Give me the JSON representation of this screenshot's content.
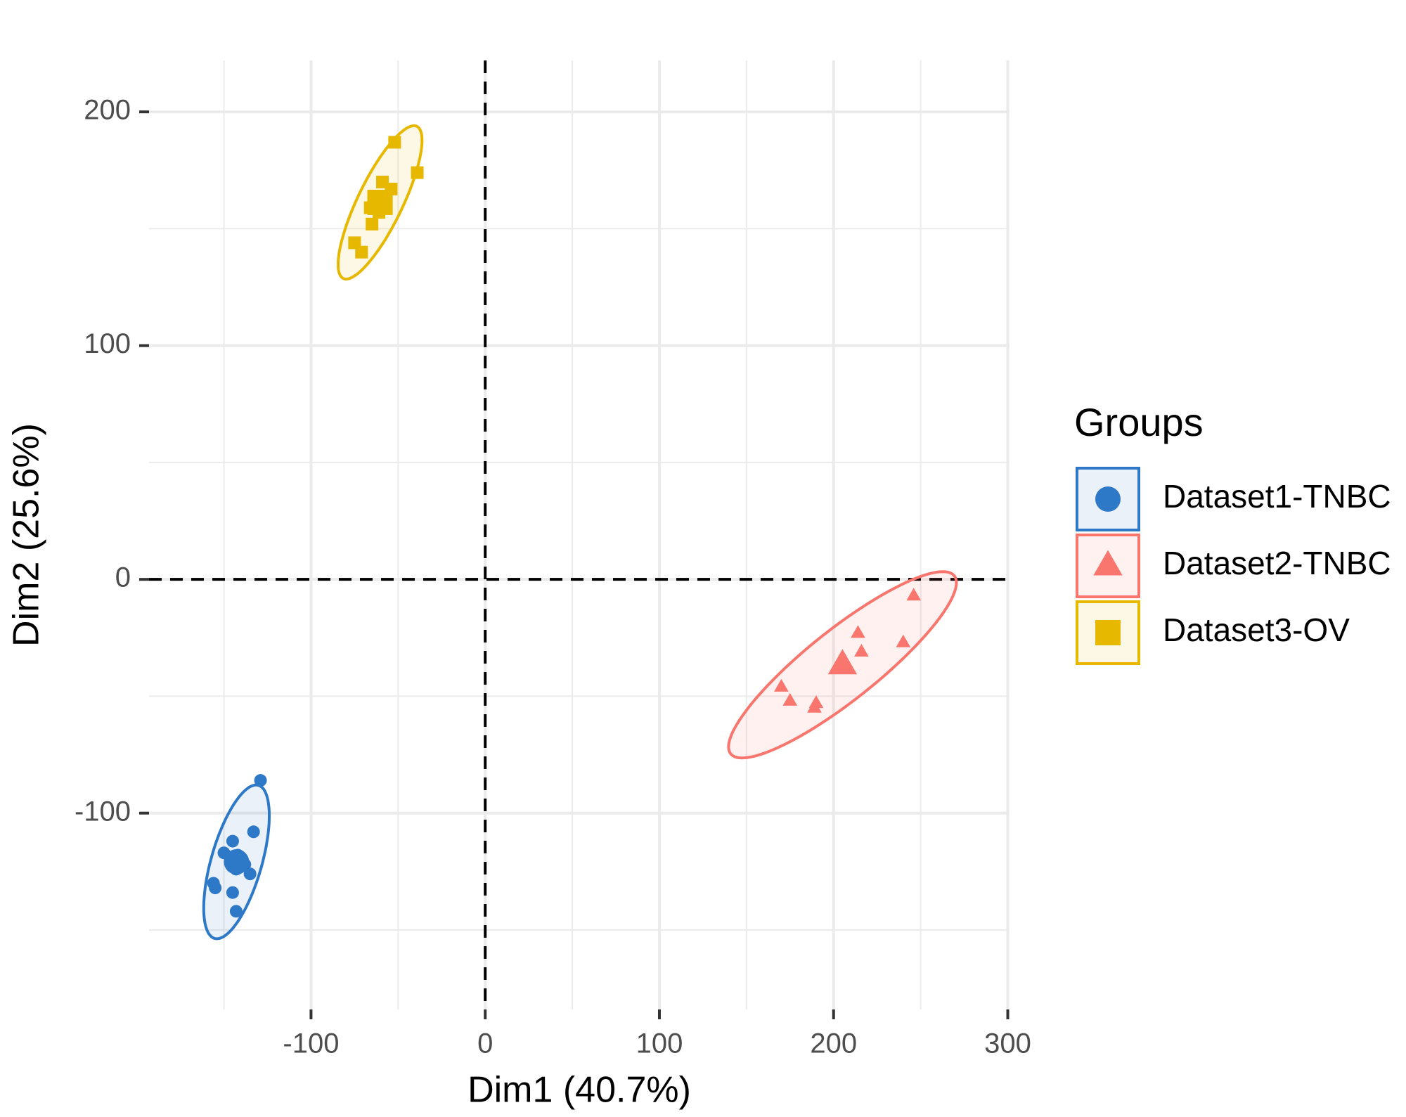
{
  "chart_data": {
    "type": "scatter",
    "xlabel": "Dim1 (40.7%)",
    "ylabel": "Dim2 (25.6%)",
    "legend_title": "Groups",
    "legend": "right",
    "grid": true,
    "ellipses": true,
    "hline": 0,
    "vline": 0,
    "xlim": [
      -193,
      301
    ],
    "ylim": [
      -184,
      222
    ],
    "xticks": [
      -100,
      0,
      100,
      200,
      300
    ],
    "yticks": [
      -100,
      0,
      100,
      200
    ],
    "series": [
      {
        "name": "Dataset1-TNBC",
        "color": "#2e78c8",
        "shape": "circle",
        "x": [
          -129,
          -133,
          -145,
          -150,
          -145,
          -142,
          -140,
          -138,
          -143,
          -135,
          -156,
          -155,
          -145,
          -143
        ],
        "values": [
          -86,
          -108,
          -112,
          -117,
          -120,
          -118,
          -121,
          -122,
          -124,
          -126,
          -130,
          -132,
          -134,
          -142
        ]
      },
      {
        "name": "Dataset2-TNBC",
        "color": "#f8766d",
        "shape": "triangle",
        "x": [
          246,
          214,
          216,
          240,
          170,
          175,
          190,
          189,
          206
        ],
        "values": [
          -7,
          -23,
          -31,
          -27,
          -46,
          -52,
          -53,
          -55,
          -35
        ]
      },
      {
        "name": "Dataset3-OV",
        "color": "#e7b800",
        "shape": "square",
        "x": [
          -52,
          -39,
          -59,
          -54,
          -66,
          -61,
          -65,
          -75,
          -71,
          -58,
          -64
        ],
        "values": [
          187,
          174,
          170,
          167,
          159,
          157,
          152,
          144,
          140,
          161,
          163
        ]
      }
    ]
  }
}
